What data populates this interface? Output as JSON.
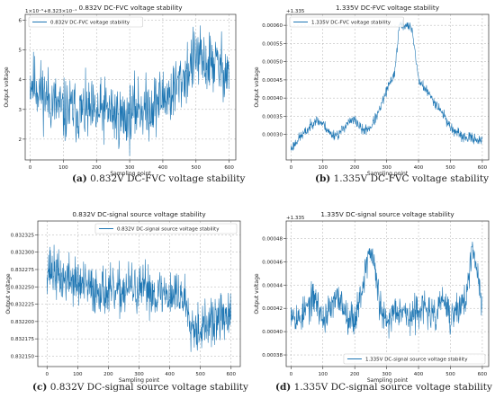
{
  "colors": {
    "line": "#1f77b4",
    "grid": "#b0b0b0",
    "axis": "#333333",
    "text": "#222222"
  },
  "chart_data": [
    {
      "type": "line",
      "title": "0.832V DC-FVC voltage stability",
      "xlabel": "Sampling point",
      "ylabel": "Output voltage",
      "offset_label": "1×10⁻⁵+8.323×10⁻¹",
      "xlim": [
        -15,
        620
      ],
      "ylim": [
        1.3,
        6.2
      ],
      "xticks": [
        0,
        100,
        200,
        300,
        400,
        500,
        600
      ],
      "yticks": [
        2,
        3,
        4,
        5,
        6
      ],
      "ytick_labels": [
        "2",
        "3",
        "4",
        "5",
        "6"
      ],
      "grid": true,
      "legend": "top-left",
      "series": [
        {
          "name": "0.832V DC-FVC voltage stability",
          "x": [
            0,
            25,
            50,
            75,
            100,
            125,
            150,
            175,
            200,
            225,
            250,
            275,
            300,
            325,
            350,
            375,
            400,
            425,
            450,
            475,
            500,
            525,
            550,
            575,
            600
          ],
          "y": [
            4.0,
            3.7,
            3.4,
            3.2,
            2.9,
            3.0,
            2.9,
            2.9,
            2.8,
            3.0,
            2.9,
            2.7,
            2.8,
            3.1,
            3.0,
            3.2,
            3.4,
            3.5,
            3.9,
            4.3,
            4.8,
            4.5,
            4.6,
            4.4,
            4.3
          ],
          "noise": 0.75,
          "seed": 11
        }
      ],
      "caption_label": "(a)",
      "caption_text": "0.832V DC-FVC voltage stability"
    },
    {
      "type": "line",
      "title": "1.335V DC-FVC voltage stability",
      "xlabel": "Sampling point",
      "ylabel": "Output voltage",
      "offset_label": "+1.335",
      "xlim": [
        -15,
        620
      ],
      "ylim": [
        0.00023,
        0.00063
      ],
      "xticks": [
        0,
        100,
        200,
        300,
        400,
        500,
        600
      ],
      "yticks": [
        0.0003,
        0.00035,
        0.0004,
        0.00045,
        0.0005,
        0.00055,
        0.0006
      ],
      "ytick_labels": [
        "0.00030",
        "0.00035",
        "0.00040",
        "0.00045",
        "0.00050",
        "0.00055",
        "0.00060"
      ],
      "grid": true,
      "legend": "top-left",
      "series": [
        {
          "name": "1.335V DC-FVC voltage stability",
          "x": [
            0,
            25,
            50,
            75,
            100,
            125,
            150,
            175,
            200,
            225,
            250,
            275,
            300,
            325,
            340,
            360,
            380,
            400,
            425,
            450,
            475,
            500,
            525,
            550,
            575,
            600
          ],
          "y": [
            0.00026,
            0.00029,
            0.00031,
            0.00034,
            0.00033,
            0.0003,
            0.0003,
            0.00033,
            0.00034,
            0.00031,
            0.00032,
            0.00036,
            0.00042,
            0.00047,
            0.0006,
            0.0006,
            0.00059,
            0.00045,
            0.00042,
            0.00039,
            0.00036,
            0.00032,
            0.0003,
            0.00029,
            0.00029,
            0.00028
          ],
          "noise": 1e-05,
          "seed": 23
        }
      ],
      "caption_label": "(b)",
      "caption_text": "1.335V DC-FVC voltage stability"
    },
    {
      "type": "line",
      "title": "0.832V DC-signal source voltage stability",
      "xlabel": "Sampling point",
      "ylabel": "Output voltage",
      "offset_label": "",
      "xlim": [
        -30,
        630
      ],
      "ylim": [
        0.832135,
        0.832345
      ],
      "xticks": [
        0,
        100,
        200,
        300,
        400,
        500,
        600
      ],
      "yticks": [
        0.83215,
        0.832175,
        0.8322,
        0.832225,
        0.83225,
        0.832275,
        0.8323,
        0.832325
      ],
      "ytick_labels": [
        "0.832150",
        "0.832175",
        "0.832200",
        "0.832225",
        "0.832250",
        "0.832275",
        "0.832300",
        "0.832325"
      ],
      "grid": true,
      "legend": "top-right",
      "series": [
        {
          "name": "0.832V DC-signal source voltage stability",
          "x": [
            0,
            25,
            50,
            75,
            100,
            125,
            150,
            175,
            200,
            225,
            250,
            275,
            300,
            325,
            350,
            375,
            400,
            425,
            450,
            475,
            500,
            525,
            550,
            575,
            600
          ],
          "y": [
            0.83228,
            0.83227,
            0.83226,
            0.832262,
            0.832255,
            0.83225,
            0.832245,
            0.832248,
            0.83224,
            0.83224,
            0.832245,
            0.83225,
            0.83224,
            0.83225,
            0.83224,
            0.832242,
            0.832238,
            0.83224,
            0.832232,
            0.832195,
            0.83219,
            0.832195,
            0.8322,
            0.83221,
            0.8322
          ],
          "noise": 2.5e-05,
          "seed": 37
        }
      ],
      "caption_label": "(c)",
      "caption_text": "0.832V DC-signal source voltage stability"
    },
    {
      "type": "line",
      "title": "1.335V DC-signal source voltage stability",
      "xlabel": "Sampling point",
      "ylabel": "Output voltage",
      "offset_label": "+1.335",
      "xlim": [
        -15,
        620
      ],
      "ylim": [
        0.00037,
        0.000495
      ],
      "xticks": [
        0,
        100,
        200,
        300,
        400,
        500,
        600
      ],
      "yticks": [
        0.00038,
        0.0004,
        0.00042,
        0.00044,
        0.00046,
        0.00048
      ],
      "ytick_labels": [
        "0.00038",
        "0.00040",
        "0.00042",
        "0.00044",
        "0.00046",
        "0.00048"
      ],
      "grid": true,
      "legend": "bottom-right",
      "series": [
        {
          "name": "1.335V DC-signal source voltage stability",
          "x": [
            0,
            25,
            50,
            75,
            100,
            125,
            150,
            175,
            200,
            225,
            245,
            260,
            280,
            300,
            325,
            350,
            375,
            400,
            425,
            450,
            475,
            500,
            525,
            550,
            570,
            585,
            600
          ],
          "y": [
            0.00042,
            0.00041,
            0.00042,
            0.00043,
            0.00041,
            0.00042,
            0.00043,
            0.000415,
            0.00041,
            0.00044,
            0.00047,
            0.00046,
            0.00042,
            0.000405,
            0.00042,
            0.00042,
            0.00041,
            0.00042,
            0.00042,
            0.00041,
            0.00043,
            0.00041,
            0.00042,
            0.00043,
            0.00047,
            0.00045,
            0.00042
          ],
          "noise": 1e-05,
          "seed": 53
        }
      ],
      "caption_label": "(d)",
      "caption_text": "1.335V DC-signal source voltage stability"
    }
  ]
}
